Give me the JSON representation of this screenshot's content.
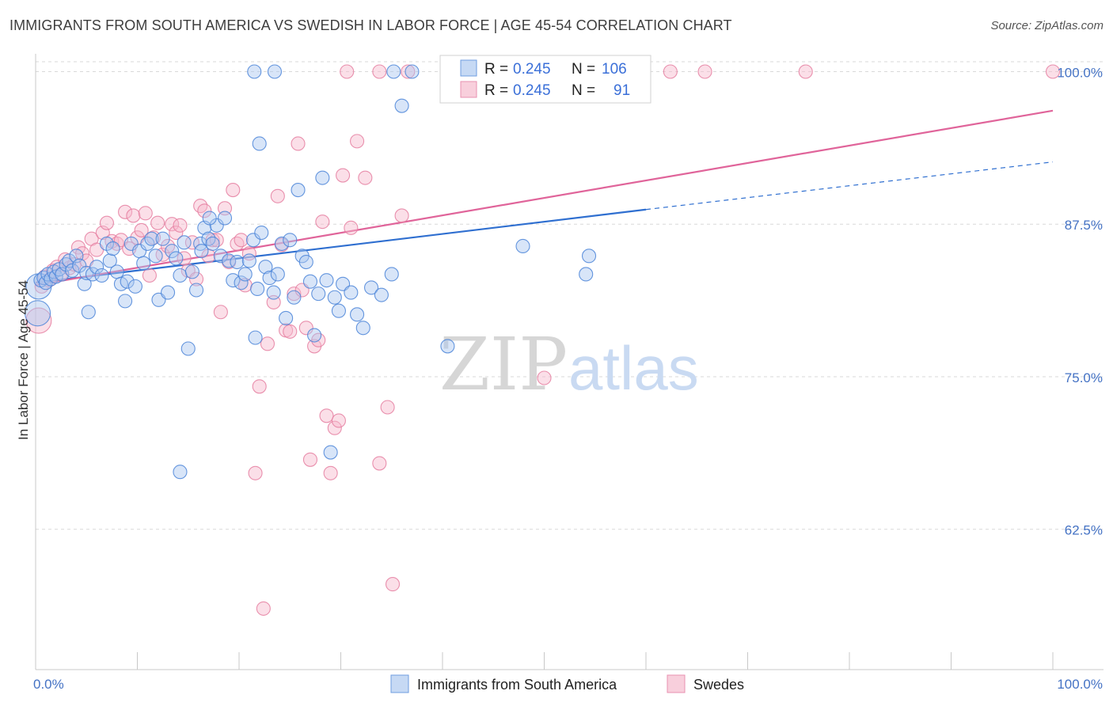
{
  "title": "IMMIGRANTS FROM SOUTH AMERICA VS SWEDISH IN LABOR FORCE | AGE 45-54 CORRELATION CHART",
  "source": "Source: ZipAtlas.com",
  "watermark": {
    "zip": "ZIP",
    "atlas": "atlas"
  },
  "colors": {
    "blue_fill": "#a9c6f0",
    "blue_stroke": "#4a84d8",
    "blue_line": "#2f6fd0",
    "pink_fill": "#f6b8cc",
    "pink_stroke": "#e57ea0",
    "pink_line": "#e0649a",
    "grid": "#d9d9d9",
    "tick_text": "#4472c4"
  },
  "legend": {
    "rows": [
      {
        "r_label": "R =",
        "r_value": "0.245",
        "n_label": "N =",
        "n_value": "106"
      },
      {
        "r_label": "R =",
        "r_value": "0.245",
        "n_label": "N =",
        "n_value": "91"
      }
    ]
  },
  "bottom_legend": [
    "Immigrants from South America",
    "Swedes"
  ],
  "chart_data": {
    "type": "scatter",
    "title": "IMMIGRANTS FROM SOUTH AMERICA VS SWEDISH IN LABOR FORCE | AGE 45-54 CORRELATION CHART",
    "xlabel": "",
    "ylabel": "In Labor Force | Age 45-54",
    "x_tick_labels": [
      "0.0%",
      "100.0%"
    ],
    "y_tick_labels": [
      "100.0%",
      "87.5%",
      "75.0%",
      "62.5%"
    ],
    "y_ticks": [
      100,
      87.5,
      75,
      62.5
    ],
    "xlim": [
      0,
      100
    ],
    "ylim": [
      51,
      101.2
    ],
    "grid": true,
    "series": [
      {
        "name": "Immigrants from South America",
        "color": "#a9c6f0",
        "trend": {
          "x0": 0,
          "y0": 82.7,
          "x1": 60,
          "y1": 88.7,
          "dashed_to_x": 100,
          "dashed_to_y": 92.6
        },
        "points": [
          [
            0.2,
            80.2
          ],
          [
            0.3,
            82.4
          ],
          [
            0.5,
            82.9
          ],
          [
            0.8,
            83.1
          ],
          [
            1.0,
            82.7
          ],
          [
            1.2,
            83.4
          ],
          [
            1.5,
            83.0
          ],
          [
            1.8,
            83.6
          ],
          [
            2.0,
            83.2
          ],
          [
            2.3,
            83.8
          ],
          [
            2.6,
            83.4
          ],
          [
            3.0,
            84.2
          ],
          [
            3.3,
            84.5
          ],
          [
            3.6,
            83.7
          ],
          [
            4.0,
            84.9
          ],
          [
            4.3,
            84.1
          ],
          [
            4.8,
            82.6
          ],
          [
            5.0,
            83.5
          ],
          [
            5.2,
            80.3
          ],
          [
            5.6,
            83.4
          ],
          [
            6.0,
            84.0
          ],
          [
            6.5,
            83.3
          ],
          [
            7.0,
            85.9
          ],
          [
            7.3,
            84.5
          ],
          [
            7.6,
            85.5
          ],
          [
            8.0,
            83.6
          ],
          [
            8.4,
            82.6
          ],
          [
            8.8,
            81.2
          ],
          [
            9.0,
            82.8
          ],
          [
            9.4,
            85.9
          ],
          [
            9.8,
            82.4
          ],
          [
            10.2,
            85.3
          ],
          [
            10.6,
            84.3
          ],
          [
            11.0,
            85.9
          ],
          [
            11.4,
            86.3
          ],
          [
            11.8,
            84.9
          ],
          [
            12.1,
            81.3
          ],
          [
            12.5,
            86.3
          ],
          [
            13.0,
            81.9
          ],
          [
            13.4,
            85.3
          ],
          [
            13.8,
            84.7
          ],
          [
            14.2,
            83.3
          ],
          [
            14.6,
            86.0
          ],
          [
            15.0,
            77.3
          ],
          [
            15.4,
            83.6
          ],
          [
            15.8,
            82.1
          ],
          [
            16.2,
            85.9
          ],
          [
            16.6,
            87.2
          ],
          [
            17.0,
            86.3
          ],
          [
            17.4,
            85.9
          ],
          [
            17.8,
            87.4
          ],
          [
            18.2,
            84.9
          ],
          [
            18.6,
            88.0
          ],
          [
            19.0,
            84.5
          ],
          [
            19.4,
            82.9
          ],
          [
            19.8,
            84.4
          ],
          [
            20.2,
            82.7
          ],
          [
            20.6,
            83.4
          ],
          [
            21.0,
            84.5
          ],
          [
            21.4,
            86.2
          ],
          [
            21.8,
            82.2
          ],
          [
            22.2,
            86.8
          ],
          [
            22.6,
            84.0
          ],
          [
            23.0,
            83.1
          ],
          [
            23.4,
            81.9
          ],
          [
            23.8,
            83.4
          ],
          [
            24.2,
            85.9
          ],
          [
            24.6,
            79.8
          ],
          [
            25.0,
            86.2
          ],
          [
            25.4,
            81.5
          ],
          [
            25.8,
            90.3
          ],
          [
            26.2,
            84.9
          ],
          [
            26.6,
            84.4
          ],
          [
            27.0,
            82.8
          ],
          [
            27.4,
            78.4
          ],
          [
            27.8,
            81.8
          ],
          [
            28.2,
            91.3
          ],
          [
            28.6,
            82.9
          ],
          [
            29.0,
            68.8
          ],
          [
            29.4,
            81.5
          ],
          [
            29.8,
            80.4
          ],
          [
            30.2,
            82.6
          ],
          [
            31.0,
            81.9
          ],
          [
            31.6,
            80.1
          ],
          [
            32.2,
            79.0
          ],
          [
            33.0,
            82.3
          ],
          [
            34.0,
            81.7
          ],
          [
            35.0,
            83.4
          ],
          [
            36.0,
            97.2
          ],
          [
            37.0,
            100.0
          ],
          [
            14.2,
            67.2
          ],
          [
            21.6,
            78.2
          ],
          [
            22.0,
            94.1
          ],
          [
            23.5,
            100.0
          ],
          [
            21.5,
            100.0
          ],
          [
            35.2,
            100.0
          ],
          [
            42.3,
            100.0
          ],
          [
            43.4,
            100.0
          ],
          [
            46.0,
            100.0
          ],
          [
            59.4,
            100.0
          ],
          [
            40.5,
            77.5
          ],
          [
            47.9,
            85.7
          ],
          [
            54.4,
            84.9
          ],
          [
            54.1,
            83.4
          ],
          [
            17.1,
            88.0
          ],
          [
            16.3,
            85.3
          ]
        ]
      },
      {
        "name": "Swedes",
        "color": "#f6b8cc",
        "trend": {
          "x0": 0,
          "y0": 82.5,
          "x1": 100,
          "y1": 96.8
        },
        "points": [
          [
            0.3,
            79.6
          ],
          [
            0.6,
            82.4
          ],
          [
            0.9,
            83.2
          ],
          [
            1.3,
            82.9
          ],
          [
            1.7,
            83.7
          ],
          [
            2.1,
            84.0
          ],
          [
            2.5,
            83.4
          ],
          [
            2.9,
            84.6
          ],
          [
            3.3,
            83.9
          ],
          [
            3.8,
            84.2
          ],
          [
            4.2,
            85.6
          ],
          [
            4.6,
            85.1
          ],
          [
            5.0,
            84.5
          ],
          [
            5.5,
            86.3
          ],
          [
            6.0,
            85.4
          ],
          [
            6.6,
            86.8
          ],
          [
            7.0,
            87.6
          ],
          [
            7.5,
            86.1
          ],
          [
            8.0,
            85.9
          ],
          [
            8.4,
            86.2
          ],
          [
            8.8,
            88.5
          ],
          [
            9.2,
            85.5
          ],
          [
            9.6,
            88.2
          ],
          [
            10.0,
            86.4
          ],
          [
            10.4,
            87.0
          ],
          [
            10.8,
            88.4
          ],
          [
            11.2,
            83.3
          ],
          [
            11.6,
            86.4
          ],
          [
            12.0,
            87.6
          ],
          [
            12.5,
            85.0
          ],
          [
            13.0,
            85.7
          ],
          [
            13.4,
            87.5
          ],
          [
            13.8,
            86.8
          ],
          [
            14.2,
            87.4
          ],
          [
            14.6,
            84.7
          ],
          [
            15.0,
            83.7
          ],
          [
            15.4,
            86.0
          ],
          [
            15.8,
            83.0
          ],
          [
            16.2,
            89.0
          ],
          [
            16.6,
            88.6
          ],
          [
            17.0,
            84.9
          ],
          [
            17.4,
            86.2
          ],
          [
            17.8,
            86.2
          ],
          [
            18.2,
            80.3
          ],
          [
            18.6,
            88.8
          ],
          [
            19.0,
            84.4
          ],
          [
            19.4,
            90.3
          ],
          [
            19.8,
            85.9
          ],
          [
            20.2,
            86.2
          ],
          [
            20.6,
            82.5
          ],
          [
            21.0,
            85.1
          ],
          [
            21.6,
            67.1
          ],
          [
            22.0,
            74.2
          ],
          [
            22.4,
            56.0
          ],
          [
            22.8,
            77.7
          ],
          [
            23.4,
            81.1
          ],
          [
            23.8,
            89.8
          ],
          [
            24.2,
            85.8
          ],
          [
            24.6,
            78.8
          ],
          [
            25.0,
            78.7
          ],
          [
            25.4,
            81.8
          ],
          [
            25.8,
            94.1
          ],
          [
            26.2,
            82.1
          ],
          [
            26.6,
            79.0
          ],
          [
            27.0,
            68.2
          ],
          [
            27.4,
            77.5
          ],
          [
            27.8,
            78.0
          ],
          [
            28.2,
            87.7
          ],
          [
            28.6,
            71.8
          ],
          [
            29.0,
            67.1
          ],
          [
            29.4,
            70.8
          ],
          [
            29.8,
            71.4
          ],
          [
            30.2,
            91.5
          ],
          [
            31.0,
            87.2
          ],
          [
            31.6,
            94.3
          ],
          [
            32.4,
            91.3
          ],
          [
            33.8,
            67.9
          ],
          [
            34.6,
            72.5
          ],
          [
            35.1,
            58.0
          ],
          [
            36.0,
            88.2
          ],
          [
            30.6,
            100.0
          ],
          [
            33.8,
            100.0
          ],
          [
            36.6,
            100.0
          ],
          [
            41.2,
            100.0
          ],
          [
            42.2,
            100.0
          ],
          [
            53.1,
            100.0
          ],
          [
            62.4,
            100.0
          ],
          [
            65.8,
            100.0
          ],
          [
            75.7,
            100.0
          ],
          [
            100.0,
            100.0
          ],
          [
            50.0,
            74.9
          ]
        ]
      }
    ]
  }
}
